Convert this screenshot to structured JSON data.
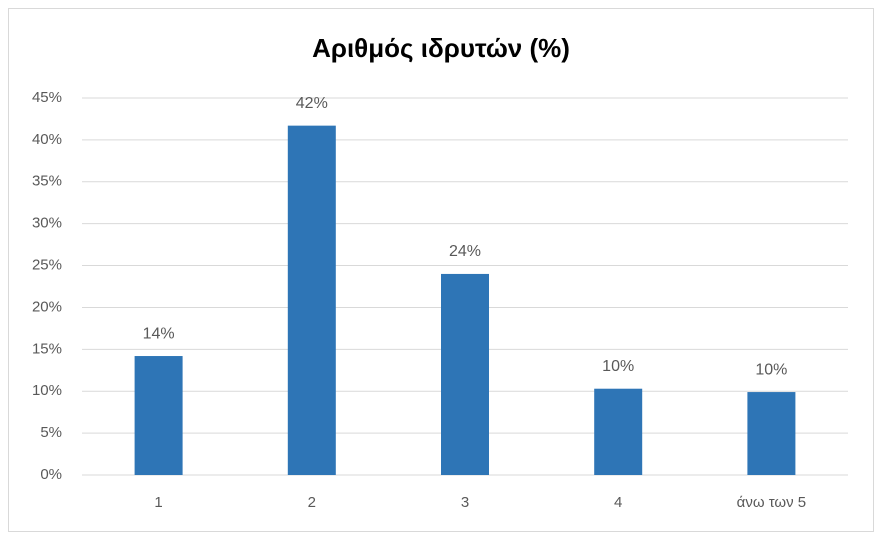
{
  "chart_data": {
    "type": "bar",
    "title": "Αριθμός ιδρυτών (%)",
    "categories": [
      "1",
      "2",
      "3",
      "4",
      "άνω των 5"
    ],
    "values": [
      14.2,
      41.7,
      24.0,
      10.3,
      9.9
    ],
    "value_labels": [
      "14%",
      "42%",
      "24%",
      "10%",
      "10%"
    ],
    "color": "#2e75b6",
    "ylim": [
      0,
      45
    ],
    "yticks": [
      {
        "value": 0,
        "label": "0%"
      },
      {
        "value": 5,
        "label": "5%"
      },
      {
        "value": 10,
        "label": "10%"
      },
      {
        "value": 15,
        "label": "15%"
      },
      {
        "value": 20,
        "label": "20%"
      },
      {
        "value": 25,
        "label": "25%"
      },
      {
        "value": 30,
        "label": "30%"
      },
      {
        "value": 35,
        "label": "35%"
      },
      {
        "value": 40,
        "label": "40%"
      },
      {
        "value": 45,
        "label": "45%"
      }
    ],
    "grid": true
  }
}
